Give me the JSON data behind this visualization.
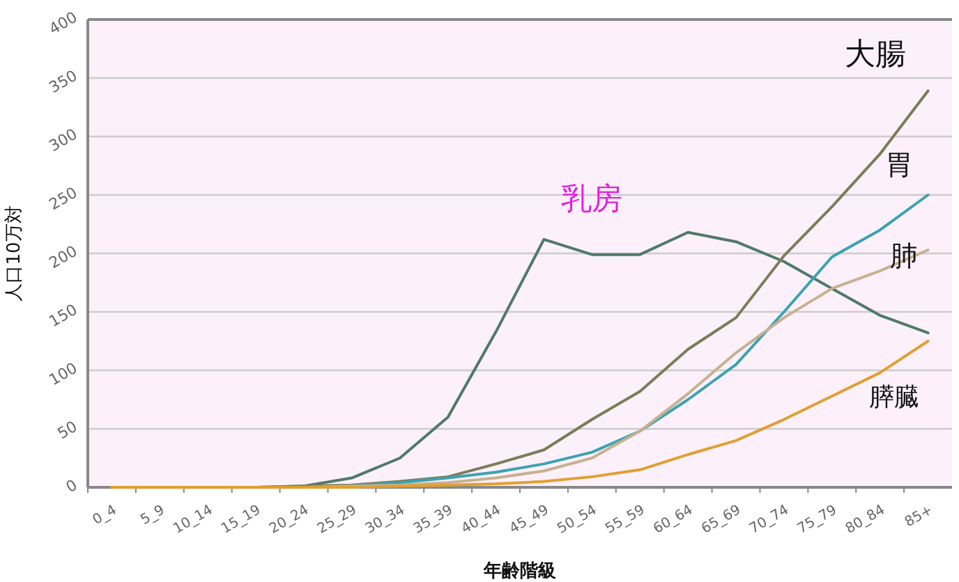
{
  "chart_data": {
    "type": "line",
    "xlabel": "年齢階級",
    "ylabel": "人口10万対",
    "categories": [
      "0_4",
      "5_9",
      "10_14",
      "15_19",
      "20_24",
      "25_29",
      "30_34",
      "35_39",
      "40_44",
      "45_49",
      "50_54",
      "55_59",
      "60_64",
      "65_69",
      "70_74",
      "75_79",
      "80_84",
      "85+"
    ],
    "ylim": [
      0,
      400
    ],
    "yticks": [
      0,
      50,
      100,
      150,
      200,
      250,
      300,
      350,
      400
    ],
    "grid": "y",
    "marker": "none",
    "line_style": "solid",
    "series": [
      {
        "name": "乳房",
        "color": "#4f7a68",
        "values": [
          0,
          0,
          0,
          0,
          1,
          8,
          25,
          60,
          133,
          212,
          199,
          199,
          218,
          210,
          193,
          170,
          147,
          132
        ]
      },
      {
        "name": "大腸",
        "color": "#7c7c58",
        "values": [
          0,
          0,
          0,
          0,
          1,
          2,
          5,
          9,
          20,
          32,
          58,
          82,
          118,
          145,
          198,
          240,
          285,
          339
        ]
      },
      {
        "name": "胃",
        "color": "#3aa3b0",
        "values": [
          null,
          null,
          null,
          null,
          0,
          1,
          4,
          8,
          13,
          20,
          30,
          48,
          75,
          105,
          150,
          197,
          220,
          250
        ]
      },
      {
        "name": "肺",
        "color": "#c8b090",
        "values": [
          0,
          0,
          0,
          0,
          0,
          1,
          2,
          4,
          8,
          14,
          25,
          48,
          80,
          115,
          145,
          170,
          185,
          203
        ]
      },
      {
        "name": "膵臓",
        "color": "#e0a030",
        "values": [
          0,
          0,
          0,
          0,
          0,
          0,
          1,
          2,
          3,
          5,
          9,
          15,
          28,
          40,
          58,
          78,
          98,
          125
        ]
      }
    ]
  }
}
